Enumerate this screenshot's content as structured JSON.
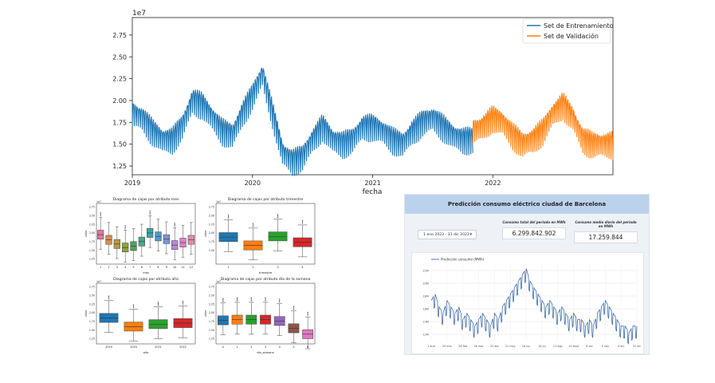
{
  "main_chart": {
    "multiplier": "1e7",
    "xlabel": "fecha",
    "yticks": [
      "1.25",
      "1.50",
      "1.75",
      "2.00",
      "2.25",
      "2.50",
      "2.75"
    ],
    "ytick_values": [
      1.25,
      1.5,
      1.75,
      2.0,
      2.25,
      2.5,
      2.75
    ],
    "xticks": [
      "2019",
      "2020",
      "2021",
      "2022"
    ],
    "legend": [
      "Set de Entrenamiento",
      "Set de Validación"
    ],
    "colors": {
      "train": "#1f77b4",
      "val": "#ff7f0e"
    }
  },
  "box_charts": [
    {
      "title": "Diagrama de cajas por atributo mes",
      "xlabel": "mes",
      "ylabel": "valor",
      "multiplier": "1e7",
      "yticks": [
        "1.25",
        "1.50",
        "1.75",
        "2.00",
        "2.25",
        "2.50",
        "2.75"
      ],
      "categories": [
        "1",
        "2",
        "3",
        "4",
        "5",
        "6",
        "7",
        "8",
        "9",
        "10",
        "11",
        "12"
      ]
    },
    {
      "title": "Diagrama de cajas por atributo trimestre",
      "xlabel": "trimestre",
      "ylabel": "valor",
      "multiplier": "1e7",
      "yticks": [
        "1.50",
        "1.75",
        "2.00",
        "2.25",
        "2.50",
        "2.75"
      ],
      "categories": [
        "1",
        "2",
        "3",
        "4"
      ]
    },
    {
      "title": "Diagrama de cajas por atributo año",
      "xlabel": "año",
      "ylabel": "valor",
      "multiplier": "1e7",
      "yticks": [
        "1.25",
        "1.50",
        "1.75",
        "2.00",
        "2.25",
        "2.50",
        "2.75"
      ],
      "categories": [
        "2019",
        "2020",
        "2021",
        "2022"
      ]
    },
    {
      "title": "Diagrama de cajas por atributo día de la semana",
      "xlabel": "dia_semana",
      "ylabel": "valor",
      "multiplier": "1e7",
      "yticks": [
        "1.25",
        "1.50",
        "1.75",
        "2.00",
        "2.25",
        "2.50",
        "2.75"
      ],
      "categories": [
        "0",
        "1",
        "2",
        "3",
        "4",
        "5",
        "6"
      ]
    }
  ],
  "dashboard": {
    "title": "Predicción consumo eléctrico ciudad de Barcelona",
    "date_range": "1 ene 2023 - 31 dic 2023",
    "kpi_total_label": "Consumo total del periodo en MWh",
    "kpi_total_value": "6.299.842.902",
    "kpi_daily_label": "Consumo medio diario del periodo en MWh",
    "kpi_daily_value": "17.259.844",
    "chart_legend": "Predicción consumo (MWh)",
    "yticks": [
      "12M",
      "14M",
      "16M",
      "18M",
      "20M",
      "22M"
    ],
    "xticks": [
      "1 ene",
      "29 ene",
      "26 feb",
      "26 mar",
      "23 abr",
      "21 may",
      "18 jun",
      "16 jul",
      "13 ago",
      "10 sept",
      "8 oct",
      "5 nov",
      "3 dic",
      "31 dic"
    ]
  },
  "chart_data": [
    {
      "type": "line",
      "title": "",
      "xlabel": "fecha",
      "ylabel": "",
      "ylim": [
        1.15,
        2.95
      ],
      "series": [
        {
          "name": "Set de Entrenamiento",
          "x_start": "2019-01",
          "x_end": "2021-10",
          "approx_monthly": [
            1.9,
            1.85,
            1.7,
            1.6,
            1.6,
            1.75,
            2.05,
            2.0,
            1.85,
            1.7,
            1.65,
            1.9,
            2.1,
            2.35,
            1.9,
            1.45,
            1.35,
            1.4,
            1.6,
            1.75,
            1.6,
            1.55,
            1.6,
            1.75,
            1.75,
            1.7,
            1.6,
            1.55,
            1.7,
            1.8,
            1.85,
            1.75,
            1.65,
            1.6
          ]
        },
        {
          "name": "Set de Validación",
          "x_start": "2021-11",
          "x_end": "2022-12",
          "approx_monthly": [
            1.7,
            1.75,
            1.85,
            1.8,
            1.65,
            1.55,
            1.6,
            1.7,
            1.9,
            2.0,
            1.85,
            1.6,
            1.55,
            1.55
          ]
        }
      ]
    },
    {
      "type": "box",
      "title": "Diagrama de cajas por atributo mes",
      "categories": [
        "1",
        "2",
        "3",
        "4",
        "5",
        "6",
        "7",
        "8",
        "9",
        "10",
        "11",
        "12"
      ],
      "median": [
        1.95,
        1.8,
        1.68,
        1.58,
        1.62,
        1.75,
        2.0,
        1.9,
        1.82,
        1.65,
        1.72,
        1.8
      ]
    },
    {
      "type": "box",
      "title": "Diagrama de cajas por atributo trimestre",
      "categories": [
        "1",
        "2",
        "3",
        "4"
      ],
      "median": [
        1.88,
        1.64,
        1.9,
        1.73
      ]
    },
    {
      "type": "box",
      "title": "Diagrama de cajas por atributo año",
      "categories": [
        "2019",
        "2020",
        "2021",
        "2022"
      ],
      "median": [
        1.85,
        1.6,
        1.67,
        1.7
      ]
    },
    {
      "type": "box",
      "title": "Diagrama de cajas por atributo día de la semana",
      "categories": [
        "0",
        "1",
        "2",
        "3",
        "4",
        "5",
        "6"
      ],
      "median": [
        1.78,
        1.8,
        1.8,
        1.8,
        1.76,
        1.55,
        1.38
      ]
    },
    {
      "type": "line",
      "title": "",
      "series": [
        {
          "name": "Predicción consumo (MWh)",
          "approx_weekly": [
            17,
            18,
            16,
            15,
            17,
            16,
            15,
            16,
            14,
            15,
            14,
            13,
            14,
            15,
            14,
            13,
            15,
            14,
            16,
            17,
            18,
            19,
            20,
            21,
            22,
            20,
            19,
            18,
            17,
            16,
            17,
            16,
            15,
            16,
            15,
            14,
            15,
            14,
            14,
            13,
            14,
            13,
            15,
            16,
            17,
            16,
            15,
            14,
            13,
            13,
            12,
            13
          ]
        }
      ]
    }
  ]
}
